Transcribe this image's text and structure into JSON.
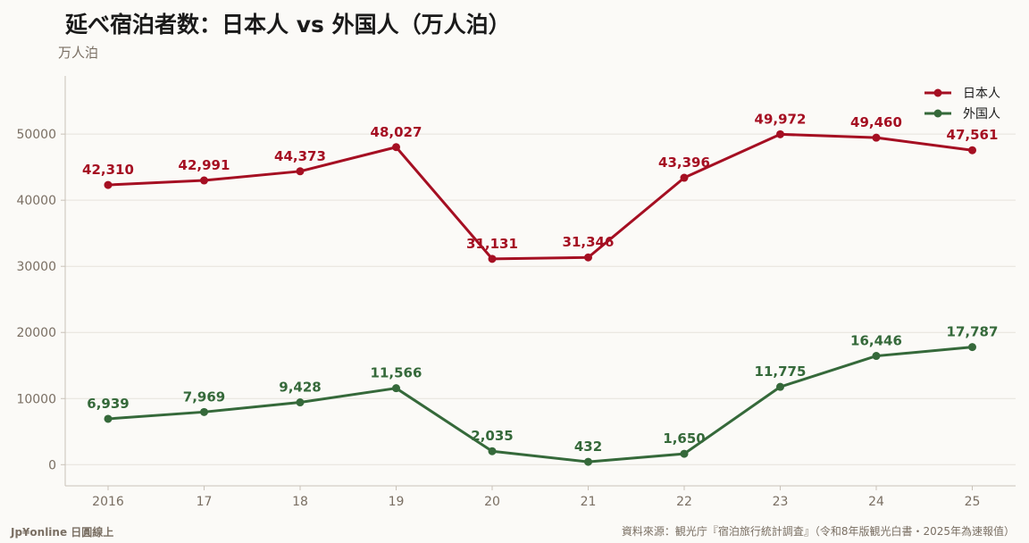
{
  "header": {
    "title": "延べ宿泊者数：日本人 vs 外国人（万人泊）",
    "unit": "万人泊"
  },
  "footer": {
    "brand": "Jp¥online 日圓線上",
    "source": "資料來源：観光庁『宿泊旅行統計調査』（令和8年版観光白書・2025年為速報值）"
  },
  "chart_data": {
    "type": "line",
    "categories": [
      "2016",
      "17",
      "18",
      "19",
      "20",
      "21",
      "22",
      "23",
      "24",
      "25"
    ],
    "series": [
      {
        "name": "日本人",
        "color": "#a50f22",
        "values": [
          42310,
          42991,
          44373,
          48027,
          31131,
          31346,
          43396,
          49972,
          49460,
          47561
        ],
        "labels": [
          "42,310",
          "42,991",
          "44,373",
          "48,027",
          "31,131",
          "31,346",
          "43,396",
          "49,972",
          "49,460",
          "47,561"
        ]
      },
      {
        "name": "外国人",
        "color": "#35693a",
        "values": [
          6939,
          7969,
          9428,
          11566,
          2035,
          432,
          1650,
          11775,
          16446,
          17787
        ],
        "labels": [
          "6,939",
          "7,969",
          "9,428",
          "11,566",
          "2,035",
          "432",
          "1,650",
          "11,775",
          "16,446",
          "17,787"
        ]
      }
    ],
    "ylim": [
      -3200,
      58800
    ],
    "yticks": [
      0,
      10000,
      20000,
      30000,
      40000,
      50000
    ],
    "ylabel": "万人泊",
    "grid": true,
    "legend": "top-right"
  }
}
